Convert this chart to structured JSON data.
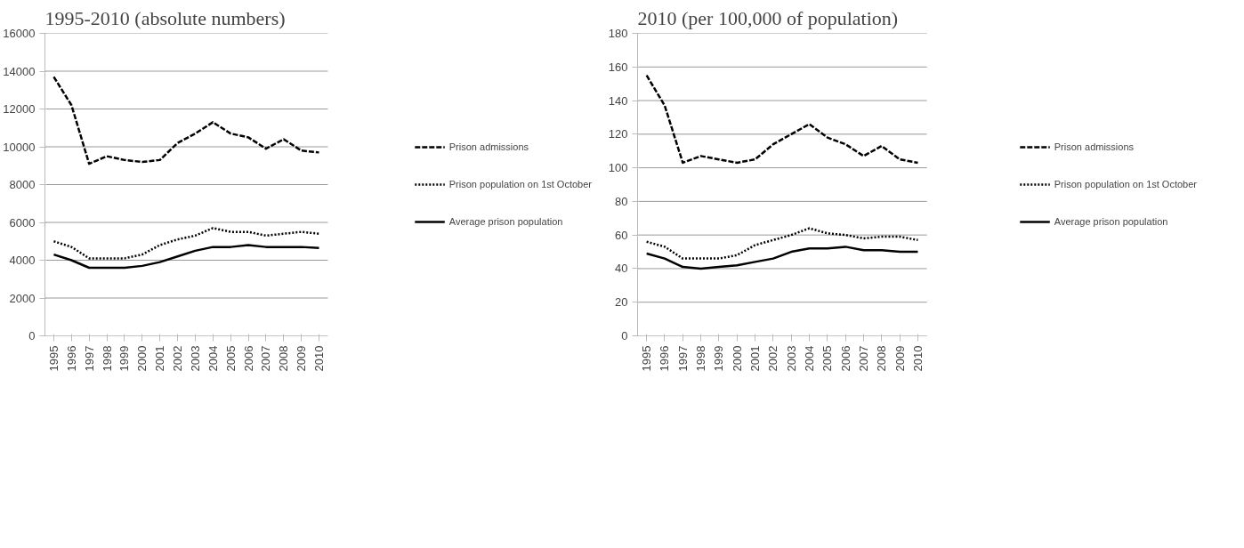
{
  "chart_data": [
    {
      "type": "line",
      "title": "1995-2010 (absolute numbers)",
      "categories": [
        "1995",
        "1996",
        "1997",
        "1998",
        "1999",
        "2000",
        "2001",
        "2002",
        "2003",
        "2004",
        "2005",
        "2006",
        "2007",
        "2008",
        "2009",
        "2010"
      ],
      "ylim": [
        0,
        16000
      ],
      "yticks": [
        0,
        2000,
        4000,
        6000,
        8000,
        10000,
        12000,
        14000,
        16000
      ],
      "grid": "y",
      "legend": "right",
      "series": [
        {
          "name": "Prison admissions",
          "color": "#000000",
          "line_style": "dashed",
          "values": [
            13700,
            12200,
            9100,
            9500,
            9300,
            9200,
            9300,
            10200,
            10700,
            11300,
            10700,
            10500,
            9900,
            10400,
            9800,
            9700
          ]
        },
        {
          "name": "Prison population on 1st October",
          "color": "#000000",
          "line_style": "dotted",
          "values": [
            5000,
            4700,
            4100,
            4100,
            4100,
            4300,
            4800,
            5100,
            5300,
            5700,
            5500,
            5500,
            5300,
            5400,
            5500,
            5400
          ]
        },
        {
          "name": "Average prison population",
          "color": "#000000",
          "line_style": "solid",
          "values": [
            4300,
            4000,
            3600,
            3600,
            3600,
            3700,
            3900,
            4200,
            4500,
            4700,
            4700,
            4800,
            4700,
            4700,
            4700,
            4650
          ]
        }
      ]
    },
    {
      "type": "line",
      "title": "2010 (per 100,000 of population)",
      "categories": [
        "1995",
        "1996",
        "1997",
        "1998",
        "1999",
        "2000",
        "2001",
        "2002",
        "2003",
        "2004",
        "2005",
        "2006",
        "2007",
        "2008",
        "2009",
        "2010"
      ],
      "ylim": [
        0,
        180
      ],
      "yticks": [
        0,
        20,
        40,
        60,
        80,
        100,
        120,
        140,
        160,
        180
      ],
      "grid": "y",
      "legend": "right",
      "series": [
        {
          "name": "Prison admissions",
          "color": "#000000",
          "line_style": "dashed",
          "values": [
            155,
            137,
            103,
            107,
            105,
            103,
            105,
            114,
            120,
            126,
            118,
            114,
            107,
            113,
            105,
            103
          ]
        },
        {
          "name": "Prison population on 1st October",
          "color": "#000000",
          "line_style": "dotted",
          "values": [
            56,
            53,
            46,
            46,
            46,
            48,
            54,
            57,
            60,
            64,
            61,
            60,
            58,
            59,
            59,
            57
          ]
        },
        {
          "name": "Average prison population",
          "color": "#000000",
          "line_style": "solid",
          "values": [
            49,
            46,
            41,
            40,
            41,
            42,
            44,
            46,
            50,
            52,
            52,
            53,
            51,
            51,
            50,
            50
          ]
        }
      ]
    }
  ]
}
